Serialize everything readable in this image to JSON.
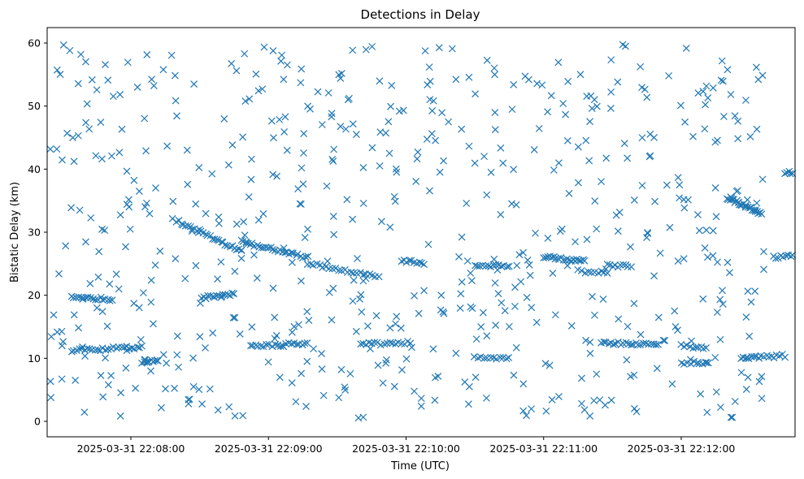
{
  "chart_data": {
    "type": "scatter",
    "title": "Detections in Delay",
    "xlabel": "Time (UTC)",
    "ylabel": "Bistatic Delay (km)",
    "marker": "x",
    "color": "#1f77b4",
    "grid": false,
    "x_tick_labels": [
      "2025-03-31 22:08:00",
      "2025-03-31 22:09:00",
      "2025-03-31 22:10:00",
      "2025-03-31 22:11:00",
      "2025-03-31 22:12:00"
    ],
    "x_tick_seconds": [
      60,
      120,
      180,
      240,
      300
    ],
    "x_range_seconds": [
      24,
      336
    ],
    "y_ticks": [
      0,
      10,
      20,
      30,
      40,
      50,
      60
    ],
    "ylim": [
      -2.3,
      62.7
    ],
    "tracks": [
      {
        "start_s": 34,
        "end_s": 52,
        "y0": 19.8,
        "y1": 19.3,
        "n": 18
      },
      {
        "start_s": 34,
        "end_s": 65,
        "y0": 11.2,
        "y1": 11.8,
        "n": 28
      },
      {
        "start_s": 65,
        "end_s": 72,
        "y0": 9.4,
        "y1": 9.6,
        "n": 10
      },
      {
        "start_s": 80,
        "end_s": 108,
        "y0": 31.8,
        "y1": 27.0,
        "n": 30
      },
      {
        "start_s": 108,
        "end_s": 137,
        "y0": 28.5,
        "y1": 26.0,
        "n": 30
      },
      {
        "start_s": 91,
        "end_s": 105,
        "y0": 19.6,
        "y1": 20.2,
        "n": 16
      },
      {
        "start_s": 112,
        "end_s": 137,
        "y0": 12.0,
        "y1": 12.3,
        "n": 22
      },
      {
        "start_s": 137,
        "end_s": 168,
        "y0": 25.0,
        "y1": 23.0,
        "n": 24
      },
      {
        "start_s": 160,
        "end_s": 182,
        "y0": 12.2,
        "y1": 12.5,
        "n": 18
      },
      {
        "start_s": 178,
        "end_s": 188,
        "y0": 25.5,
        "y1": 25.0,
        "n": 10
      },
      {
        "start_s": 210,
        "end_s": 225,
        "y0": 24.8,
        "y1": 24.6,
        "n": 14
      },
      {
        "start_s": 210,
        "end_s": 225,
        "y0": 10.0,
        "y1": 10.2,
        "n": 12
      },
      {
        "start_s": 240,
        "end_s": 258,
        "y0": 26.0,
        "y1": 25.5,
        "n": 22
      },
      {
        "start_s": 255,
        "end_s": 268,
        "y0": 23.8,
        "y1": 23.5,
        "n": 10
      },
      {
        "start_s": 268,
        "end_s": 278,
        "y0": 24.8,
        "y1": 24.5,
        "n": 10
      },
      {
        "start_s": 265,
        "end_s": 290,
        "y0": 12.4,
        "y1": 12.2,
        "n": 24
      },
      {
        "start_s": 300,
        "end_s": 311,
        "y0": 12.0,
        "y1": 11.6,
        "n": 10
      },
      {
        "start_s": 300,
        "end_s": 312,
        "y0": 9.2,
        "y1": 9.4,
        "n": 10
      },
      {
        "start_s": 320,
        "end_s": 335,
        "y0": 35.5,
        "y1": 33.0,
        "n": 26
      },
      {
        "start_s": 326,
        "end_s": 345,
        "y0": 10.0,
        "y1": 10.4,
        "n": 18
      },
      {
        "start_s": 345,
        "end_s": 355,
        "y0": 39.4,
        "y1": 39.8,
        "n": 12
      },
      {
        "start_s": 340,
        "end_s": 352,
        "y0": 26.0,
        "y1": 26.5,
        "n": 12
      }
    ],
    "clutter": {
      "count": 620,
      "y_range": [
        0.5,
        60
      ],
      "seed": 1337
    }
  }
}
